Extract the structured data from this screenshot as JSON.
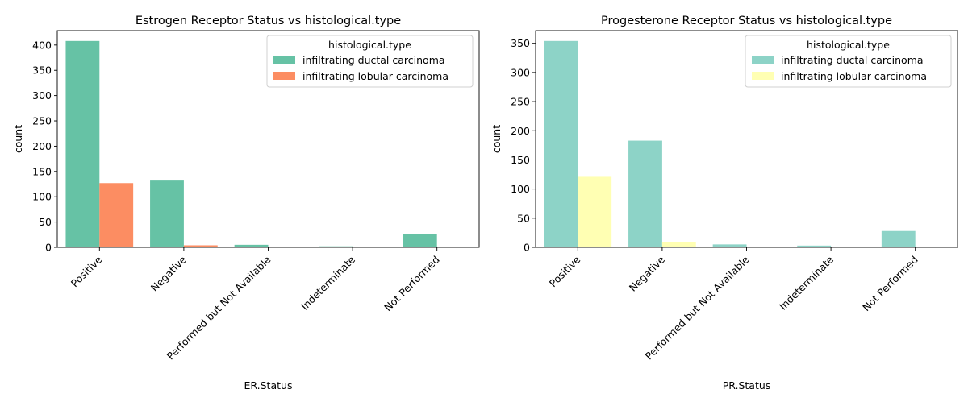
{
  "chart_data": [
    {
      "type": "bar",
      "title": "Estrogen Receptor Status vs histological.type",
      "xlabel": "ER.Status",
      "ylabel": "count",
      "categories": [
        "Positive",
        "Negative",
        "Performed but Not Available",
        "Indeterminate",
        "Not Performed"
      ],
      "series": [
        {
          "name": "infiltrating ductal carcinoma",
          "values": [
            408,
            132,
            5,
            2,
            27
          ],
          "color": "#66c2a5"
        },
        {
          "name": "infiltrating lobular carcinoma",
          "values": [
            127,
            4,
            0,
            0,
            0
          ],
          "color": "#fc8d62"
        }
      ],
      "ylim": [
        0,
        428.4
      ],
      "yticks": [
        0,
        50,
        100,
        150,
        200,
        250,
        300,
        350,
        400
      ],
      "legend_title": "histological.type",
      "legend_position": "top-right",
      "grid": false
    },
    {
      "type": "bar",
      "title": "Progesterone Receptor Status vs histological.type",
      "xlabel": "PR.Status",
      "ylabel": "count",
      "categories": [
        "Positive",
        "Negative",
        "Performed but Not Available",
        "Indeterminate",
        "Not Performed"
      ],
      "series": [
        {
          "name": "infiltrating ductal carcinoma",
          "values": [
            354,
            183,
            5,
            3,
            28
          ],
          "color": "#8dd3c7"
        },
        {
          "name": "infiltrating lobular carcinoma",
          "values": [
            121,
            9,
            0,
            0,
            0
          ],
          "color": "#ffffb3"
        }
      ],
      "ylim": [
        0,
        371.7
      ],
      "yticks": [
        0,
        50,
        100,
        150,
        200,
        250,
        300,
        350
      ],
      "legend_title": "histological.type",
      "legend_position": "top-right",
      "grid": false
    }
  ]
}
